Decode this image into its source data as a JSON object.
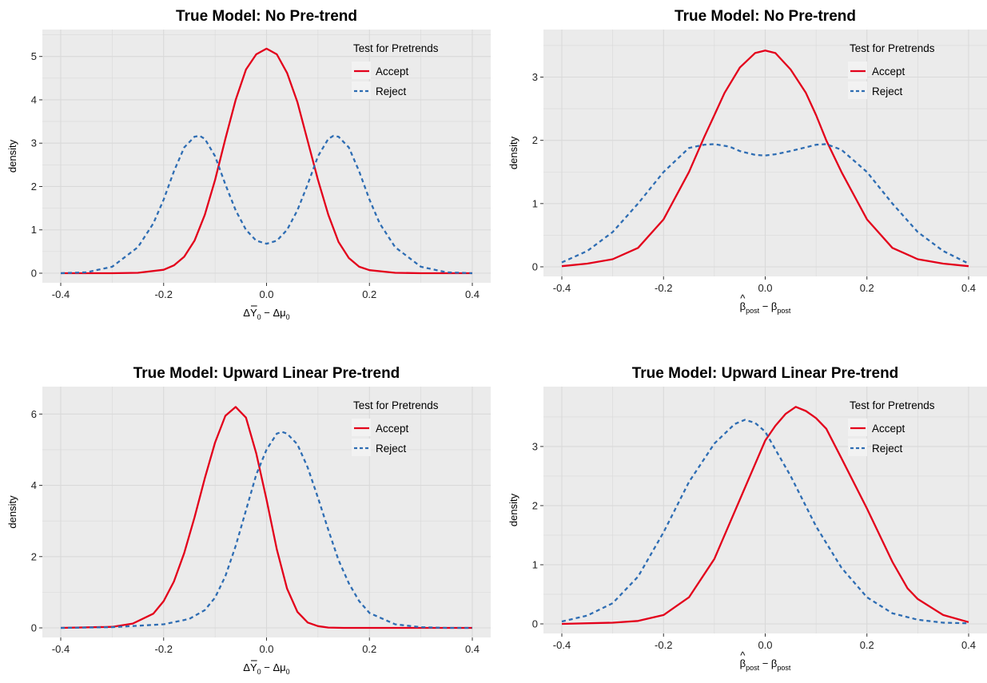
{
  "colors": {
    "panel_bg": "#EBEBEB",
    "grid": "#D9D9D9",
    "accept": "#E3001B",
    "reject": "#2E6DB3"
  },
  "chart_data": [
    {
      "type": "line",
      "title": "True Model: No Pre-trend",
      "xlabel_parts": [
        "Δ",
        "Y",
        "0",
        " − Δμ",
        "0"
      ],
      "xlabel_kind": "ybar",
      "ylabel": "density",
      "xlim": [
        -0.4,
        0.4
      ],
      "ylim": [
        0,
        5.4
      ],
      "xticks": [
        -0.4,
        -0.2,
        0.0,
        0.2,
        0.4
      ],
      "xtick_labels": [
        "-0.4",
        "-0.2",
        "0.0",
        "0.2",
        "0.4"
      ],
      "yticks": [
        0,
        1,
        2,
        3,
        4,
        5
      ],
      "ytick_labels": [
        "0",
        "1",
        "2",
        "3",
        "4",
        "5"
      ],
      "grid": true,
      "legend": {
        "title": "Test for Pretrends",
        "position": "top-right",
        "entries": [
          "Accept",
          "Reject"
        ]
      },
      "series": [
        {
          "name": "Accept",
          "style": "solid",
          "x": [
            -0.4,
            -0.3,
            -0.25,
            -0.2,
            -0.18,
            -0.16,
            -0.14,
            -0.12,
            -0.1,
            -0.08,
            -0.06,
            -0.04,
            -0.02,
            0.0,
            0.02,
            0.04,
            0.06,
            0.08,
            0.1,
            0.12,
            0.14,
            0.16,
            0.18,
            0.2,
            0.25,
            0.3,
            0.4
          ],
          "y": [
            0,
            0,
            0.01,
            0.08,
            0.18,
            0.38,
            0.75,
            1.35,
            2.15,
            3.1,
            4.0,
            4.7,
            5.05,
            5.18,
            5.05,
            4.62,
            3.95,
            3.05,
            2.15,
            1.35,
            0.72,
            0.35,
            0.15,
            0.07,
            0.01,
            0,
            0
          ]
        },
        {
          "name": "Reject",
          "style": "dashed",
          "x": [
            -0.4,
            -0.35,
            -0.3,
            -0.25,
            -0.22,
            -0.2,
            -0.18,
            -0.16,
            -0.14,
            -0.13,
            -0.12,
            -0.1,
            -0.08,
            -0.06,
            -0.04,
            -0.02,
            0.0,
            0.02,
            0.04,
            0.06,
            0.08,
            0.1,
            0.12,
            0.13,
            0.14,
            0.16,
            0.18,
            0.2,
            0.22,
            0.25,
            0.3,
            0.35,
            0.4
          ],
          "y": [
            0,
            0.02,
            0.15,
            0.6,
            1.15,
            1.7,
            2.35,
            2.9,
            3.15,
            3.17,
            3.1,
            2.7,
            2.05,
            1.45,
            1.0,
            0.75,
            0.68,
            0.75,
            1.0,
            1.45,
            2.05,
            2.7,
            3.1,
            3.17,
            3.15,
            2.9,
            2.35,
            1.7,
            1.15,
            0.6,
            0.15,
            0.02,
            0
          ]
        }
      ]
    },
    {
      "type": "line",
      "title": "True Model: No Pre-trend",
      "xlabel_parts": [
        "β",
        "post",
        " − β",
        "post"
      ],
      "xlabel_kind": "betahat",
      "ylabel": "density",
      "xlim": [
        -0.4,
        0.4
      ],
      "ylim": [
        0,
        3.6
      ],
      "xticks": [
        -0.4,
        -0.2,
        0.0,
        0.2,
        0.4
      ],
      "xtick_labels": [
        "-0.4",
        "-0.2",
        "0.0",
        "0.2",
        "0.4"
      ],
      "yticks": [
        0,
        1,
        2,
        3
      ],
      "ytick_labels": [
        "0",
        "1",
        "2",
        "3"
      ],
      "grid": true,
      "legend": {
        "title": "Test for Pretrends",
        "position": "top-right",
        "entries": [
          "Accept",
          "Reject"
        ]
      },
      "series": [
        {
          "name": "Accept",
          "style": "solid",
          "x": [
            -0.4,
            -0.35,
            -0.3,
            -0.25,
            -0.2,
            -0.15,
            -0.12,
            -0.1,
            -0.08,
            -0.05,
            -0.02,
            0.0,
            0.02,
            0.05,
            0.08,
            0.1,
            0.12,
            0.15,
            0.2,
            0.25,
            0.3,
            0.35,
            0.4
          ],
          "y": [
            0.01,
            0.05,
            0.12,
            0.3,
            0.75,
            1.5,
            2.05,
            2.4,
            2.75,
            3.15,
            3.38,
            3.42,
            3.38,
            3.12,
            2.75,
            2.4,
            2.0,
            1.5,
            0.75,
            0.3,
            0.12,
            0.05,
            0.01
          ]
        },
        {
          "name": "Reject",
          "style": "dashed",
          "x": [
            -0.4,
            -0.35,
            -0.3,
            -0.25,
            -0.2,
            -0.15,
            -0.12,
            -0.1,
            -0.07,
            -0.05,
            -0.02,
            0.0,
            0.02,
            0.05,
            0.08,
            0.1,
            0.12,
            0.15,
            0.2,
            0.25,
            0.3,
            0.35,
            0.4
          ],
          "y": [
            0.07,
            0.25,
            0.55,
            1.0,
            1.5,
            1.88,
            1.93,
            1.94,
            1.9,
            1.83,
            1.77,
            1.76,
            1.78,
            1.83,
            1.89,
            1.93,
            1.94,
            1.85,
            1.5,
            1.0,
            0.55,
            0.25,
            0.05
          ]
        }
      ]
    },
    {
      "type": "line",
      "title": "True Model: Upward Linear Pre-trend",
      "xlabel_parts": [
        "Δ",
        "Y",
        "0",
        " − Δμ",
        "0"
      ],
      "xlabel_kind": "ybar",
      "ylabel": "density",
      "xlim": [
        -0.4,
        0.4
      ],
      "ylim": [
        0,
        6.5
      ],
      "xticks": [
        -0.4,
        -0.2,
        0.0,
        0.2,
        0.4
      ],
      "xtick_labels": [
        "-0.4",
        "-0.2",
        "0.0",
        "0.2",
        "0.4"
      ],
      "yticks": [
        0,
        2,
        4,
        6
      ],
      "ytick_labels": [
        "0",
        "2",
        "4",
        "6"
      ],
      "grid": true,
      "legend": {
        "title": "Test for Pretrends",
        "position": "top-right",
        "entries": [
          "Accept",
          "Reject"
        ]
      },
      "series": [
        {
          "name": "Accept",
          "style": "solid",
          "x": [
            -0.4,
            -0.3,
            -0.26,
            -0.22,
            -0.2,
            -0.18,
            -0.16,
            -0.14,
            -0.12,
            -0.1,
            -0.08,
            -0.06,
            -0.04,
            -0.02,
            0.0,
            0.02,
            0.04,
            0.06,
            0.08,
            0.1,
            0.12,
            0.15,
            0.2,
            0.4
          ],
          "y": [
            0,
            0.03,
            0.12,
            0.4,
            0.75,
            1.3,
            2.1,
            3.1,
            4.2,
            5.2,
            5.95,
            6.2,
            5.9,
            4.9,
            3.6,
            2.2,
            1.1,
            0.45,
            0.15,
            0.05,
            0.01,
            0,
            0,
            0
          ]
        },
        {
          "name": "Reject",
          "style": "dashed",
          "x": [
            -0.4,
            -0.3,
            -0.2,
            -0.15,
            -0.12,
            -0.1,
            -0.08,
            -0.06,
            -0.04,
            -0.02,
            0.0,
            0.02,
            0.03,
            0.04,
            0.06,
            0.08,
            0.1,
            0.12,
            0.14,
            0.16,
            0.18,
            0.2,
            0.25,
            0.3,
            0.35,
            0.4
          ],
          "y": [
            0,
            0.02,
            0.1,
            0.25,
            0.5,
            0.85,
            1.45,
            2.3,
            3.3,
            4.3,
            5.0,
            5.45,
            5.5,
            5.45,
            5.15,
            4.5,
            3.65,
            2.75,
            1.9,
            1.25,
            0.75,
            0.42,
            0.1,
            0.02,
            0,
            0
          ]
        }
      ]
    },
    {
      "type": "line",
      "title": "True Model: Upward Linear Pre-trend",
      "xlabel_parts": [
        "β",
        "post",
        " − β",
        "post"
      ],
      "xlabel_kind": "betahat",
      "ylabel": "density",
      "xlim": [
        -0.4,
        0.4
      ],
      "ylim": [
        0,
        3.85
      ],
      "xticks": [
        -0.4,
        -0.2,
        0.0,
        0.2,
        0.4
      ],
      "xtick_labels": [
        "-0.4",
        "-0.2",
        "0.0",
        "0.2",
        "0.4"
      ],
      "yticks": [
        0,
        1,
        2,
        3
      ],
      "ytick_labels": [
        "0",
        "1",
        "2",
        "3"
      ],
      "grid": true,
      "legend": {
        "title": "Test for Pretrends",
        "position": "top-right",
        "entries": [
          "Accept",
          "Reject"
        ]
      },
      "series": [
        {
          "name": "Accept",
          "style": "solid",
          "x": [
            -0.4,
            -0.3,
            -0.25,
            -0.2,
            -0.15,
            -0.1,
            -0.05,
            -0.02,
            0.0,
            0.02,
            0.04,
            0.06,
            0.08,
            0.1,
            0.12,
            0.15,
            0.2,
            0.25,
            0.28,
            0.3,
            0.35,
            0.4
          ],
          "y": [
            0,
            0.02,
            0.05,
            0.15,
            0.45,
            1.1,
            2.1,
            2.7,
            3.1,
            3.35,
            3.55,
            3.67,
            3.6,
            3.48,
            3.3,
            2.8,
            1.95,
            1.05,
            0.6,
            0.42,
            0.15,
            0.03
          ]
        },
        {
          "name": "Reject",
          "style": "dashed",
          "x": [
            -0.4,
            -0.35,
            -0.3,
            -0.25,
            -0.2,
            -0.15,
            -0.1,
            -0.06,
            -0.04,
            -0.02,
            0.0,
            0.02,
            0.05,
            0.1,
            0.15,
            0.2,
            0.25,
            0.3,
            0.35,
            0.4
          ],
          "y": [
            0.04,
            0.14,
            0.35,
            0.8,
            1.55,
            2.4,
            3.05,
            3.38,
            3.45,
            3.4,
            3.25,
            2.95,
            2.5,
            1.65,
            0.95,
            0.45,
            0.18,
            0.07,
            0.02,
            0.01
          ]
        }
      ]
    }
  ]
}
